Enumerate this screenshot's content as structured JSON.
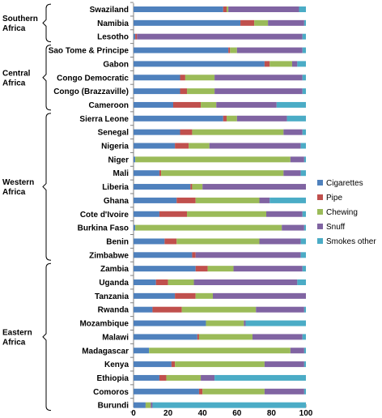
{
  "chart_data": {
    "type": "bar",
    "orientation": "horizontal",
    "stacked": true,
    "xlim": [
      0,
      100
    ],
    "xticks": [
      0,
      20,
      40,
      60,
      80,
      100
    ],
    "xlabel": "",
    "ylabel": "",
    "grid": false,
    "legend_position": "right",
    "categories": [
      "Swaziland",
      "Namibia",
      "Lesotho",
      "Sao Tome & Principe",
      "Gabon",
      "Congo Democratic",
      "Congo (Brazzaville)",
      "Cameroon",
      "Sierra Leone",
      "Senegal",
      "Nigeria",
      "Niger",
      "Mali",
      "Liberia",
      "Ghana",
      "Cote d'Ivoire",
      "Burkina Faso",
      "Benin",
      "Zimbabwe",
      "Zambia",
      "Uganda",
      "Tanzania",
      "Rwanda",
      "Mozambique",
      "Malawi",
      "Madagascar",
      "Kenya",
      "Ethiopia",
      "Comoros",
      "Burundi"
    ],
    "regions": [
      {
        "label_lines": [
          "Southern",
          "Africa"
        ],
        "start": 0,
        "end": 2
      },
      {
        "label_lines": [
          "Central",
          "Africa"
        ],
        "start": 3,
        "end": 7
      },
      {
        "label_lines": [
          "Western",
          "Africa"
        ],
        "start": 8,
        "end": 18
      },
      {
        "label_lines": [
          "Eastern",
          "Africa"
        ],
        "start": 19,
        "end": 29
      }
    ],
    "series": [
      {
        "name": "Cigarettes",
        "color": "#4F81BD",
        "values": [
          52,
          62,
          1,
          55,
          76,
          27,
          27,
          23,
          52,
          27,
          24,
          1,
          15,
          33,
          25,
          15,
          1,
          18,
          34,
          36,
          13,
          24,
          11,
          42,
          37,
          9,
          22,
          15,
          38,
          7
        ]
      },
      {
        "name": "Pipe",
        "color": "#C0504D",
        "values": [
          2,
          8,
          1,
          1,
          3,
          3,
          4,
          16,
          2,
          7,
          8,
          0,
          1,
          1,
          11,
          16,
          0,
          7,
          2,
          7,
          7,
          12,
          17,
          0,
          1,
          0,
          2,
          4,
          2,
          0
        ]
      },
      {
        "name": "Chewing",
        "color": "#9BBB59",
        "values": [
          1,
          8,
          0,
          4,
          13,
          17,
          16,
          9,
          6,
          53,
          12,
          90,
          71,
          6,
          37,
          46,
          85,
          48,
          0,
          15,
          15,
          10,
          43,
          22,
          31,
          82,
          52,
          20,
          36,
          3
        ]
      },
      {
        "name": "Snuff",
        "color": "#8064A2",
        "values": [
          41,
          21,
          96,
          38,
          3,
          51,
          51,
          35,
          29,
          11,
          53,
          8,
          10,
          60,
          6,
          21,
          13,
          24,
          61,
          40,
          60,
          54,
          28,
          1,
          29,
          8,
          23,
          8,
          23,
          1
        ]
      },
      {
        "name": "Smokes other",
        "color": "#4BACC6",
        "values": [
          4,
          1,
          2,
          2,
          5,
          2,
          2,
          17,
          11,
          2,
          3,
          1,
          3,
          0,
          21,
          2,
          1,
          3,
          3,
          2,
          5,
          0,
          1,
          35,
          2,
          1,
          1,
          53,
          1,
          89
        ]
      }
    ]
  }
}
